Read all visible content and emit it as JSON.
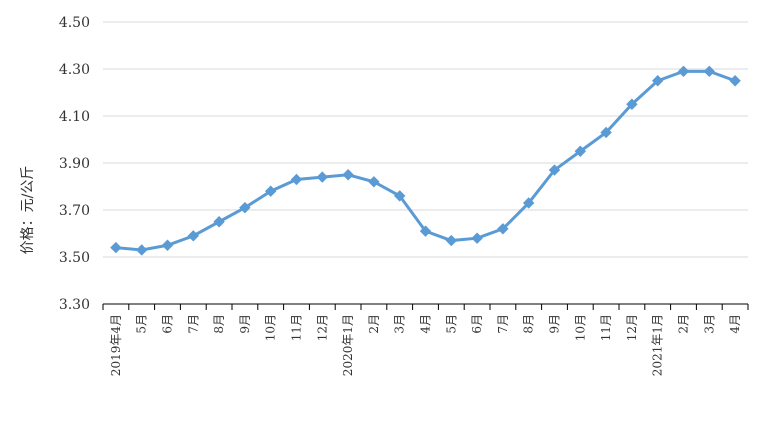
{
  "chart_data": {
    "type": "line",
    "title": "",
    "xlabel": "",
    "ylabel": "价格：元/公斤",
    "ylim": [
      3.3,
      4.5
    ],
    "yticks": [
      "3.30",
      "3.50",
      "3.70",
      "3.90",
      "4.10",
      "4.30",
      "4.50"
    ],
    "grid": "horizontal",
    "categories": [
      "2019年4月",
      "5月",
      "6月",
      "7月",
      "8月",
      "9月",
      "10月",
      "11月",
      "12月",
      "2020年1月",
      "2月",
      "3月",
      "4月",
      "5月",
      "6月",
      "7月",
      "8月",
      "9月",
      "10月",
      "11月",
      "12月",
      "2021年1月",
      "2月",
      "3月",
      "4月"
    ],
    "series": [
      {
        "values": [
          3.54,
          3.53,
          3.55,
          3.59,
          3.65,
          3.71,
          3.78,
          3.83,
          3.84,
          3.85,
          3.82,
          3.76,
          3.61,
          3.57,
          3.58,
          3.62,
          3.73,
          3.87,
          3.95,
          4.03,
          4.15,
          4.25,
          4.29,
          4.29,
          4.25
        ],
        "color": "#5B9BD5"
      }
    ]
  }
}
